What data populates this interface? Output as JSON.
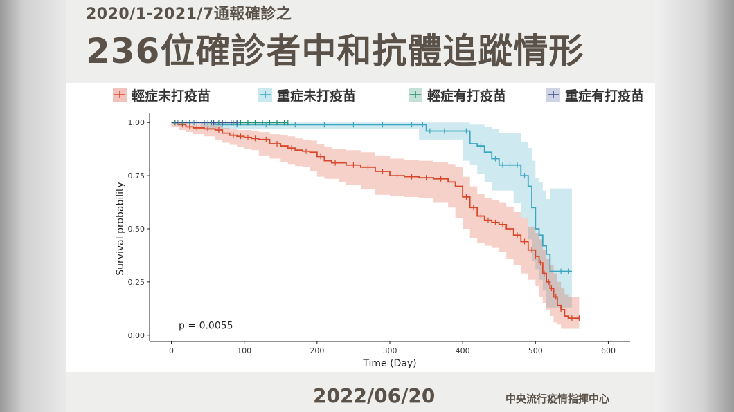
{
  "header": {
    "subtitle": "2020/1-2021/7通報確診之",
    "title": "236位確診者中和抗體追蹤情形"
  },
  "footer": {
    "date": "2022/06/20",
    "organization": "中央流行疫情指揮中心"
  },
  "colors": {
    "mild_unvaccinated": "#d9472b",
    "severe_unvaccinated": "#3aa6c0",
    "mild_vaccinated": "#1f8e6e",
    "severe_vaccinated": "#3b4d8c"
  },
  "chart_data": {
    "type": "line",
    "subtype": "kaplan-meier survival curve",
    "xlabel": "Time (Day)",
    "ylabel": "Survival probability",
    "xlim": [
      -30,
      630
    ],
    "ylim": [
      -0.03,
      1.03
    ],
    "xticks": [
      0,
      100,
      200,
      300,
      400,
      500,
      600
    ],
    "yticks": [
      "0.00",
      "0.25",
      "0.50",
      "0.75",
      "1.00"
    ],
    "annotation": "p = 0.0055",
    "legend_position": "top",
    "series": [
      {
        "name": "輕症未打疫苗",
        "color": "#d9472b",
        "x": [
          0,
          10,
          20,
          30,
          45,
          60,
          70,
          80,
          90,
          100,
          110,
          120,
          135,
          150,
          160,
          170,
          180,
          190,
          200,
          210,
          220,
          230,
          240,
          260,
          280,
          300,
          320,
          340,
          360,
          380,
          390,
          400,
          410,
          420,
          430,
          440,
          450,
          460,
          470,
          480,
          490,
          500,
          505,
          510,
          515,
          520,
          525,
          530,
          535,
          540,
          545,
          560
        ],
        "y": [
          1.0,
          0.99,
          0.98,
          0.975,
          0.97,
          0.965,
          0.95,
          0.94,
          0.935,
          0.93,
          0.925,
          0.92,
          0.9,
          0.89,
          0.88,
          0.87,
          0.865,
          0.86,
          0.84,
          0.82,
          0.81,
          0.81,
          0.8,
          0.79,
          0.77,
          0.75,
          0.745,
          0.74,
          0.735,
          0.72,
          0.7,
          0.65,
          0.6,
          0.56,
          0.54,
          0.53,
          0.52,
          0.5,
          0.47,
          0.44,
          0.4,
          0.37,
          0.34,
          0.29,
          0.25,
          0.22,
          0.18,
          0.14,
          0.12,
          0.09,
          0.08,
          0.08
        ],
        "ci_lower": [
          1.0,
          0.98,
          0.965,
          0.955,
          0.945,
          0.935,
          0.92,
          0.905,
          0.895,
          0.885,
          0.875,
          0.87,
          0.845,
          0.83,
          0.815,
          0.805,
          0.795,
          0.79,
          0.77,
          0.745,
          0.735,
          0.735,
          0.72,
          0.705,
          0.685,
          0.66,
          0.655,
          0.65,
          0.645,
          0.625,
          0.6,
          0.55,
          0.5,
          0.455,
          0.435,
          0.42,
          0.41,
          0.39,
          0.36,
          0.33,
          0.29,
          0.26,
          0.23,
          0.18,
          0.15,
          0.12,
          0.09,
          0.06,
          0.05,
          0.03,
          0.03,
          0.03
        ],
        "ci_upper": [
          1.0,
          1.0,
          0.995,
          0.99,
          0.99,
          0.985,
          0.975,
          0.97,
          0.965,
          0.965,
          0.96,
          0.955,
          0.945,
          0.94,
          0.935,
          0.925,
          0.92,
          0.915,
          0.9,
          0.885,
          0.875,
          0.875,
          0.87,
          0.86,
          0.845,
          0.83,
          0.825,
          0.82,
          0.815,
          0.805,
          0.79,
          0.745,
          0.7,
          0.665,
          0.645,
          0.635,
          0.625,
          0.605,
          0.58,
          0.55,
          0.51,
          0.48,
          0.45,
          0.4,
          0.36,
          0.33,
          0.29,
          0.25,
          0.22,
          0.19,
          0.18,
          0.18
        ],
        "censor_x": [
          5,
          15,
          25,
          35,
          50,
          65,
          85,
          95,
          105,
          115,
          130,
          145,
          165,
          185,
          205,
          225,
          250,
          270,
          290,
          310,
          330,
          350,
          370,
          405,
          415,
          425,
          435,
          445,
          455,
          465,
          475,
          485,
          495,
          500,
          507,
          512,
          518,
          522,
          528,
          535,
          550,
          560
        ]
      },
      {
        "name": "重症未打疫苗",
        "color": "#3aa6c0",
        "x": [
          0,
          20,
          40,
          60,
          80,
          100,
          150,
          200,
          250,
          300,
          340,
          350,
          360,
          400,
          410,
          420,
          430,
          440,
          450,
          460,
          470,
          480,
          490,
          495,
          500,
          505,
          510,
          515,
          520,
          525,
          540,
          550
        ],
        "y": [
          1.0,
          1.0,
          1.0,
          0.99,
          0.99,
          0.99,
          0.99,
          0.99,
          0.99,
          0.99,
          0.99,
          0.96,
          0.96,
          0.96,
          0.9,
          0.89,
          0.86,
          0.83,
          0.8,
          0.8,
          0.8,
          0.75,
          0.7,
          0.6,
          0.5,
          0.47,
          0.42,
          0.38,
          0.3,
          0.3,
          0.3,
          0.3
        ],
        "ci_lower": [
          1.0,
          1.0,
          1.0,
          0.97,
          0.97,
          0.97,
          0.97,
          0.97,
          0.97,
          0.97,
          0.97,
          0.92,
          0.92,
          0.92,
          0.82,
          0.8,
          0.76,
          0.72,
          0.68,
          0.68,
          0.68,
          0.62,
          0.55,
          0.45,
          0.35,
          0.31,
          0.26,
          0.21,
          0.13,
          0.13,
          0.13,
          0.13
        ],
        "ci_upper": [
          1.0,
          1.0,
          1.0,
          1.0,
          1.0,
          1.0,
          1.0,
          1.0,
          1.0,
          1.0,
          1.0,
          1.0,
          1.0,
          1.0,
          0.99,
          0.99,
          0.98,
          0.97,
          0.95,
          0.95,
          0.95,
          0.91,
          0.88,
          0.82,
          0.74,
          0.72,
          0.68,
          0.64,
          0.69,
          0.69,
          0.69,
          0.69
        ],
        "censor_x": [
          10,
          30,
          50,
          70,
          90,
          130,
          170,
          210,
          250,
          290,
          330,
          345,
          355,
          375,
          405,
          425,
          445,
          455,
          465,
          475,
          485,
          535,
          545
        ]
      },
      {
        "name": "輕症有打疫苗",
        "color": "#1f8e6e",
        "x": [
          0,
          50,
          100,
          150,
          160
        ],
        "y": [
          1.0,
          1.0,
          1.0,
          1.0,
          1.0
        ],
        "censor_x": [
          5,
          15,
          25,
          35,
          45,
          55,
          65,
          75,
          85,
          95,
          105,
          115,
          125,
          135,
          145,
          155,
          160
        ]
      },
      {
        "name": "重症有打疫苗",
        "color": "#3b4d8c",
        "x": [
          0,
          30,
          60,
          90
        ],
        "y": [
          1.0,
          1.0,
          1.0,
          1.0
        ],
        "censor_x": [
          8,
          20,
          32,
          45,
          58,
          70,
          82,
          90
        ]
      }
    ]
  }
}
